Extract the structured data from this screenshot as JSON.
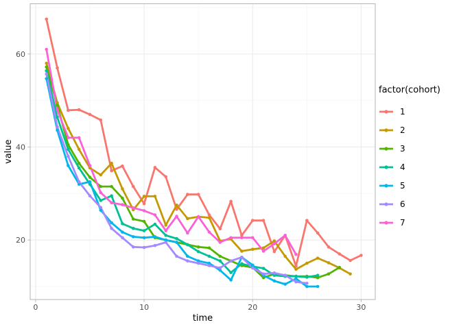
{
  "chart_data": {
    "type": "line",
    "title": "",
    "xlabel": "time",
    "ylabel": "value",
    "legend_title": "factor(cohort)",
    "x_ticks": [
      0,
      10,
      20,
      30
    ],
    "x_minor_ticks": [
      5,
      15,
      25
    ],
    "y_ticks": [
      20,
      40,
      60
    ],
    "y_minor_ticks": [
      10,
      30,
      50,
      70
    ],
    "xlim": [
      -0.5,
      31.3
    ],
    "ylim": [
      7.2,
      70.8
    ],
    "grid": "on",
    "legend_position": "right",
    "x_start": 1,
    "x_step": 1,
    "series": [
      {
        "name": "1",
        "color": "#F8766D",
        "values": [
          67.5,
          57,
          47.9,
          48,
          47,
          45.8,
          34.9,
          35.9,
          31.5,
          27.8,
          35.6,
          33.6,
          26.6,
          29.8,
          29.8,
          25.4,
          22.4,
          28.3,
          21,
          24.2,
          24.2,
          17.5,
          21,
          14.4,
          24.2,
          21.5,
          18.5,
          17,
          15.6,
          16.7
        ]
      },
      {
        "name": "2",
        "color": "#C49A00",
        "values": [
          58,
          49.5,
          44,
          39.5,
          35.5,
          34,
          36.5,
          31,
          26.5,
          29.4,
          29.4,
          23.2,
          27.5,
          24.6,
          25,
          24.8,
          19.8,
          20.2,
          17.6,
          18,
          18.3,
          19.8,
          16.5,
          13.7,
          15,
          16.1,
          15.1,
          14,
          12.7
        ]
      },
      {
        "name": "3",
        "color": "#53B400",
        "values": [
          57.2,
          49,
          40.5,
          36.5,
          33.5,
          31.5,
          31.5,
          29,
          24.5,
          24,
          20.5,
          20,
          19.5,
          19,
          18.5,
          18.3,
          16.5,
          15.5,
          14.5,
          14.1,
          11.9,
          12.7,
          12.4,
          12.2,
          12.2,
          11.9,
          12.7,
          14.1
        ]
      },
      {
        "name": "4",
        "color": "#00C094",
        "values": [
          56.4,
          46.4,
          39.5,
          35.5,
          32,
          28.5,
          29.5,
          23.5,
          22.5,
          22,
          23.4,
          21,
          20.3,
          19,
          17.5,
          16.5,
          15.5,
          13,
          14.9,
          14.3,
          13.9,
          12.4,
          12.2,
          12.2,
          12,
          12.4
        ]
      },
      {
        "name": "5",
        "color": "#00B6EB",
        "values": [
          54.7,
          43.6,
          36,
          32,
          32.5,
          26.4,
          23.7,
          21.7,
          20.7,
          20.5,
          20.7,
          20,
          19.5,
          16.5,
          15.5,
          15,
          13.5,
          11.4,
          16.3,
          14.6,
          12.4,
          11.2,
          10.5,
          11.7,
          10,
          10
        ]
      },
      {
        "name": "6",
        "color": "#A58AFF",
        "values": [
          55.7,
          44.3,
          38,
          32.5,
          29.5,
          27,
          22.5,
          20.5,
          18.5,
          18.4,
          18.8,
          19.5,
          16.5,
          15.5,
          15,
          14.5,
          14,
          15.5,
          16.3,
          14,
          12.7,
          12.9,
          12.4,
          11,
          10.7
        ]
      },
      {
        "name": "7",
        "color": "#FB61D7",
        "values": [
          61,
          48,
          42,
          42,
          36,
          30.2,
          28,
          27.6,
          26.9,
          26.3,
          25.4,
          22,
          25.1,
          21.5,
          25,
          21.7,
          19.5,
          20.5,
          20.5,
          20.5,
          17.6,
          19.2,
          21,
          16.9
        ]
      }
    ],
    "style_colors": {
      "panel_background": "#ffffff",
      "panel_border": "#b3b3b3",
      "grid_major": "#ebebeb",
      "grid_minor": "#f5f5f5",
      "tick_mark": "#b3b3b3",
      "tick_label": "#4d4d4d",
      "axis_title": "#000000"
    }
  }
}
